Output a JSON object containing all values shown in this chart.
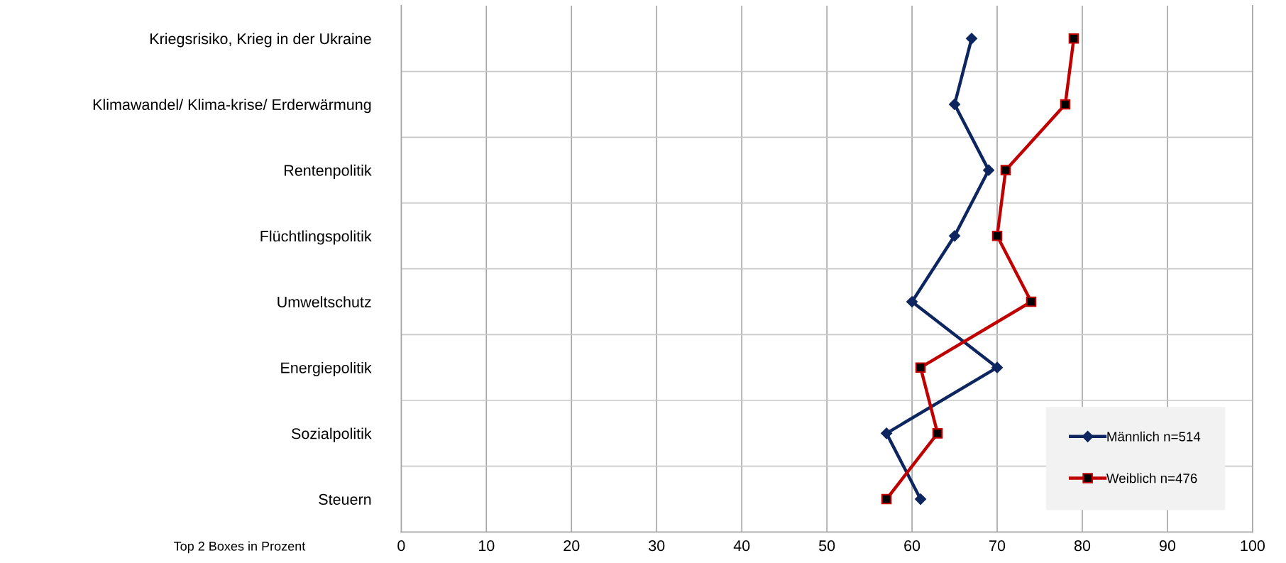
{
  "chart_data": {
    "type": "line",
    "orientation": "horizontal",
    "xlabel": "Top 2 Boxes in Prozent",
    "categories": [
      "Kriegsrisiko, Krieg in der Ukraine",
      "Klimawandel/ Klima-krise/ Erderwärmung",
      "Rentenpolitik",
      "Flüchtlingspolitik",
      "Umweltschutz",
      "Energiepolitik",
      "Sozialpolitik",
      "Steuern"
    ],
    "series": [
      {
        "name": "Männlich n=514",
        "color": "#0e2660",
        "marker": "diamond",
        "values": [
          67,
          65,
          69,
          65,
          60,
          70,
          57,
          61
        ]
      },
      {
        "name": "Weiblich n=476",
        "color": "#c00000",
        "marker": "square",
        "values": [
          79,
          78,
          71,
          70,
          74,
          61,
          63,
          57
        ]
      }
    ],
    "xlim": [
      0,
      100
    ],
    "xticks": [
      0,
      10,
      20,
      30,
      40,
      50,
      60,
      70,
      80,
      90,
      100
    ],
    "grid": true,
    "legend": "bottom right",
    "line_style": "solid"
  }
}
